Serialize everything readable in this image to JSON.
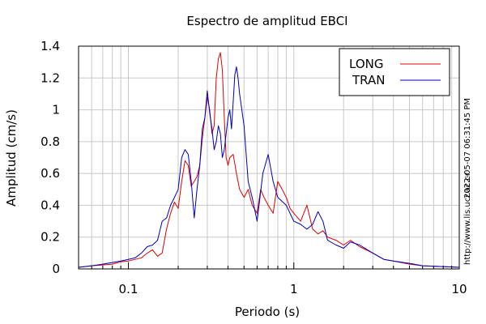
{
  "chart_data": {
    "type": "line",
    "title": "Espectro de amplitud EBCI",
    "xlabel": "Periodo (s)",
    "ylabel": "Amplitud (cm/s)",
    "x_scale": "log",
    "xlim": [
      0.05,
      10
    ],
    "ylim": [
      0,
      1.4
    ],
    "x_ticks": [
      {
        "value": 0.1,
        "label": "0.1"
      },
      {
        "value": 1,
        "label": "1"
      },
      {
        "value": 10,
        "label": "10"
      }
    ],
    "y_ticks": [
      {
        "value": 0,
        "label": "0"
      },
      {
        "value": 0.2,
        "label": "0.2"
      },
      {
        "value": 0.4,
        "label": "0.4"
      },
      {
        "value": 0.6,
        "label": "0.6"
      },
      {
        "value": 0.8,
        "label": "0.8"
      },
      {
        "value": 1,
        "label": "1"
      },
      {
        "value": 1.2,
        "label": "1.2"
      },
      {
        "value": 1.4,
        "label": "1.4"
      }
    ],
    "grid": true,
    "legend_position": "top-right",
    "series": [
      {
        "name": "LONG",
        "color": "#e00000",
        "points": [
          [
            0.05,
            0.01
          ],
          [
            0.06,
            0.02
          ],
          [
            0.07,
            0.025
          ],
          [
            0.08,
            0.03
          ],
          [
            0.09,
            0.045
          ],
          [
            0.1,
            0.05
          ],
          [
            0.11,
            0.06
          ],
          [
            0.12,
            0.07
          ],
          [
            0.13,
            0.1
          ],
          [
            0.14,
            0.12
          ],
          [
            0.15,
            0.08
          ],
          [
            0.16,
            0.1
          ],
          [
            0.17,
            0.25
          ],
          [
            0.18,
            0.35
          ],
          [
            0.19,
            0.42
          ],
          [
            0.2,
            0.38
          ],
          [
            0.21,
            0.55
          ],
          [
            0.22,
            0.68
          ],
          [
            0.23,
            0.65
          ],
          [
            0.24,
            0.52
          ],
          [
            0.25,
            0.55
          ],
          [
            0.26,
            0.58
          ],
          [
            0.27,
            0.65
          ],
          [
            0.28,
            0.82
          ],
          [
            0.29,
            0.95
          ],
          [
            0.3,
            1.08
          ],
          [
            0.31,
            1.0
          ],
          [
            0.32,
            0.85
          ],
          [
            0.33,
            0.9
          ],
          [
            0.34,
            1.2
          ],
          [
            0.35,
            1.32
          ],
          [
            0.36,
            1.36
          ],
          [
            0.37,
            1.25
          ],
          [
            0.38,
            0.95
          ],
          [
            0.39,
            0.7
          ],
          [
            0.4,
            0.65
          ],
          [
            0.41,
            0.7
          ],
          [
            0.43,
            0.72
          ],
          [
            0.45,
            0.6
          ],
          [
            0.47,
            0.5
          ],
          [
            0.5,
            0.45
          ],
          [
            0.53,
            0.5
          ],
          [
            0.56,
            0.4
          ],
          [
            0.6,
            0.35
          ],
          [
            0.63,
            0.5
          ],
          [
            0.66,
            0.45
          ],
          [
            0.7,
            0.4
          ],
          [
            0.75,
            0.35
          ],
          [
            0.8,
            0.55
          ],
          [
            0.85,
            0.5
          ],
          [
            0.9,
            0.45
          ],
          [
            0.95,
            0.38
          ],
          [
            1.0,
            0.35
          ],
          [
            1.1,
            0.3
          ],
          [
            1.2,
            0.4
          ],
          [
            1.3,
            0.25
          ],
          [
            1.4,
            0.22
          ],
          [
            1.5,
            0.24
          ],
          [
            1.6,
            0.2
          ],
          [
            1.8,
            0.18
          ],
          [
            2.0,
            0.15
          ],
          [
            2.2,
            0.18
          ],
          [
            2.5,
            0.14
          ],
          [
            3.0,
            0.1
          ],
          [
            3.5,
            0.06
          ],
          [
            4.0,
            0.05
          ],
          [
            5.0,
            0.03
          ],
          [
            6.0,
            0.02
          ],
          [
            8.0,
            0.015
          ],
          [
            10.0,
            0.01
          ]
        ]
      },
      {
        "name": "TRAN",
        "color": "#0000c0",
        "points": [
          [
            0.05,
            0.01
          ],
          [
            0.06,
            0.02
          ],
          [
            0.07,
            0.03
          ],
          [
            0.08,
            0.04
          ],
          [
            0.09,
            0.05
          ],
          [
            0.1,
            0.06
          ],
          [
            0.11,
            0.07
          ],
          [
            0.12,
            0.1
          ],
          [
            0.13,
            0.14
          ],
          [
            0.14,
            0.15
          ],
          [
            0.15,
            0.18
          ],
          [
            0.16,
            0.3
          ],
          [
            0.17,
            0.32
          ],
          [
            0.18,
            0.4
          ],
          [
            0.19,
            0.45
          ],
          [
            0.2,
            0.5
          ],
          [
            0.21,
            0.7
          ],
          [
            0.22,
            0.75
          ],
          [
            0.23,
            0.72
          ],
          [
            0.24,
            0.55
          ],
          [
            0.25,
            0.32
          ],
          [
            0.26,
            0.5
          ],
          [
            0.27,
            0.65
          ],
          [
            0.28,
            0.88
          ],
          [
            0.29,
            0.95
          ],
          [
            0.3,
            1.12
          ],
          [
            0.31,
            0.98
          ],
          [
            0.32,
            0.88
          ],
          [
            0.33,
            0.75
          ],
          [
            0.34,
            0.8
          ],
          [
            0.35,
            0.9
          ],
          [
            0.36,
            0.85
          ],
          [
            0.37,
            0.7
          ],
          [
            0.38,
            0.75
          ],
          [
            0.39,
            0.85
          ],
          [
            0.4,
            0.95
          ],
          [
            0.41,
            1.0
          ],
          [
            0.42,
            0.88
          ],
          [
            0.43,
            1.05
          ],
          [
            0.44,
            1.22
          ],
          [
            0.45,
            1.27
          ],
          [
            0.46,
            1.2
          ],
          [
            0.47,
            1.1
          ],
          [
            0.5,
            0.9
          ],
          [
            0.53,
            0.55
          ],
          [
            0.56,
            0.45
          ],
          [
            0.6,
            0.3
          ],
          [
            0.65,
            0.6
          ],
          [
            0.7,
            0.72
          ],
          [
            0.75,
            0.55
          ],
          [
            0.8,
            0.45
          ],
          [
            0.9,
            0.4
          ],
          [
            1.0,
            0.3
          ],
          [
            1.1,
            0.28
          ],
          [
            1.2,
            0.25
          ],
          [
            1.3,
            0.28
          ],
          [
            1.4,
            0.36
          ],
          [
            1.5,
            0.3
          ],
          [
            1.6,
            0.18
          ],
          [
            1.8,
            0.15
          ],
          [
            2.0,
            0.13
          ],
          [
            2.2,
            0.17
          ],
          [
            2.5,
            0.15
          ],
          [
            3.0,
            0.1
          ],
          [
            3.5,
            0.06
          ],
          [
            4.0,
            0.05
          ],
          [
            5.0,
            0.035
          ],
          [
            6.0,
            0.02
          ],
          [
            8.0,
            0.015
          ],
          [
            10.0,
            0.01
          ]
        ]
      }
    ],
    "side_annotations": {
      "timestamp": "2022-05-07 06:31:45 PM",
      "url": "http://www.lis.ucr.ac.cr"
    }
  }
}
